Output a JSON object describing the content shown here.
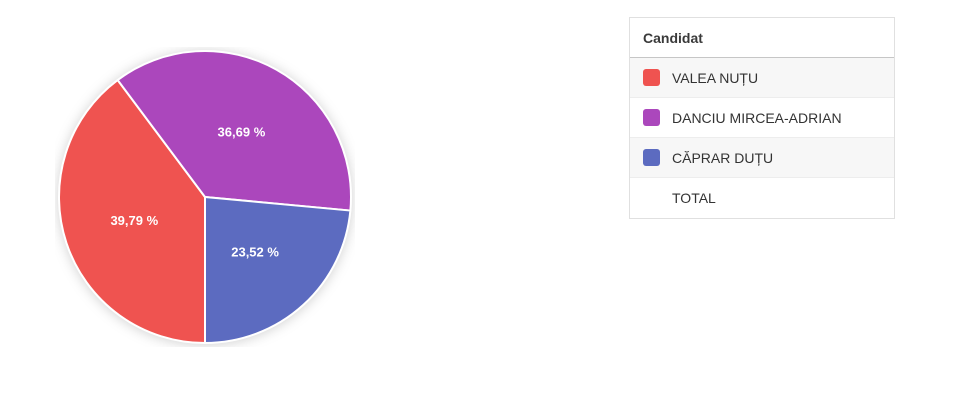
{
  "chart_data": {
    "type": "pie",
    "categories": [
      "VALEA NUȚU",
      "DANCIU MIRCEA-ADRIAN",
      "CĂPRAR DUȚU"
    ],
    "values": [
      39.79,
      36.69,
      23.52
    ],
    "labels": [
      "39,79 %",
      "36,69 %",
      "23,52 %"
    ],
    "colors": [
      "#ef5350",
      "#ab47bc",
      "#5c6bc0"
    ],
    "start_angle_deg": 180,
    "direction": "clockwise",
    "slice_border_color": "#ffffff",
    "label_color": "#ffffff",
    "legend_position": "right-table"
  },
  "legend_table": {
    "header": "Candidat",
    "rows": [
      {
        "label": "VALEA NUȚU",
        "color": "#ef5350"
      },
      {
        "label": "DANCIU MIRCEA-ADRIAN",
        "color": "#ab47bc"
      },
      {
        "label": "CĂPRAR DUȚU",
        "color": "#5c6bc0"
      },
      {
        "label": "TOTAL",
        "color": null
      }
    ]
  }
}
